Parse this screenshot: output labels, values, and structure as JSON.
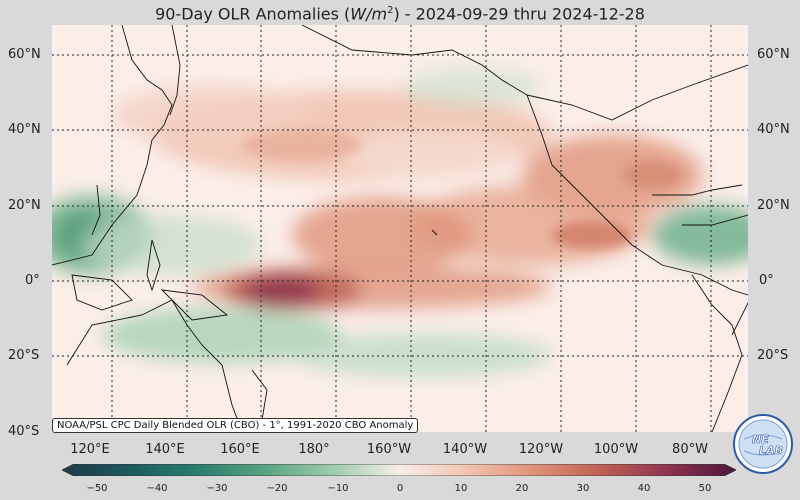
{
  "title": {
    "prefix": "90-Day OLR Anomalies (",
    "unit_base": "W/m",
    "unit_exp": "2",
    "suffix": ") - 2024-09-29 thru 2024-12-28"
  },
  "lat_labels": [
    "60°N",
    "40°N",
    "20°N",
    "0°",
    "20°S",
    "40°S"
  ],
  "lat_values": [
    60,
    40,
    20,
    0,
    -20,
    -40
  ],
  "lon_labels": [
    "120°E",
    "140°E",
    "160°E",
    "180°",
    "160°W",
    "140°W",
    "120°W",
    "100°W",
    "80°W"
  ],
  "lon_values": [
    120,
    140,
    160,
    180,
    200,
    220,
    240,
    260,
    280
  ],
  "map_extent": {
    "lon_min": 104,
    "lon_max": 290,
    "lat_min": -40,
    "lat_max": 68
  },
  "source_text": "NOAA/PSL CPC Daily Blended OLR (CBO) - 1°, 1991-2020 CBO Anomaly",
  "colorbar": {
    "ticks": [
      "−50",
      "−40",
      "−30",
      "−20",
      "−10",
      "0",
      "10",
      "20",
      "30",
      "40",
      "50"
    ],
    "tick_values": [
      -50,
      -40,
      -30,
      -20,
      -10,
      0,
      10,
      20,
      30,
      40,
      50
    ],
    "colors": [
      "#1f3a47",
      "#1d5a5e",
      "#2b7d6e",
      "#5aa282",
      "#9ccbab",
      "#f6ede8",
      "#f1c4b1",
      "#df9379",
      "#bd6054",
      "#8c3350",
      "#4e1739"
    ]
  },
  "logo": {
    "line1": "NE",
    "line2": "LAB"
  }
}
